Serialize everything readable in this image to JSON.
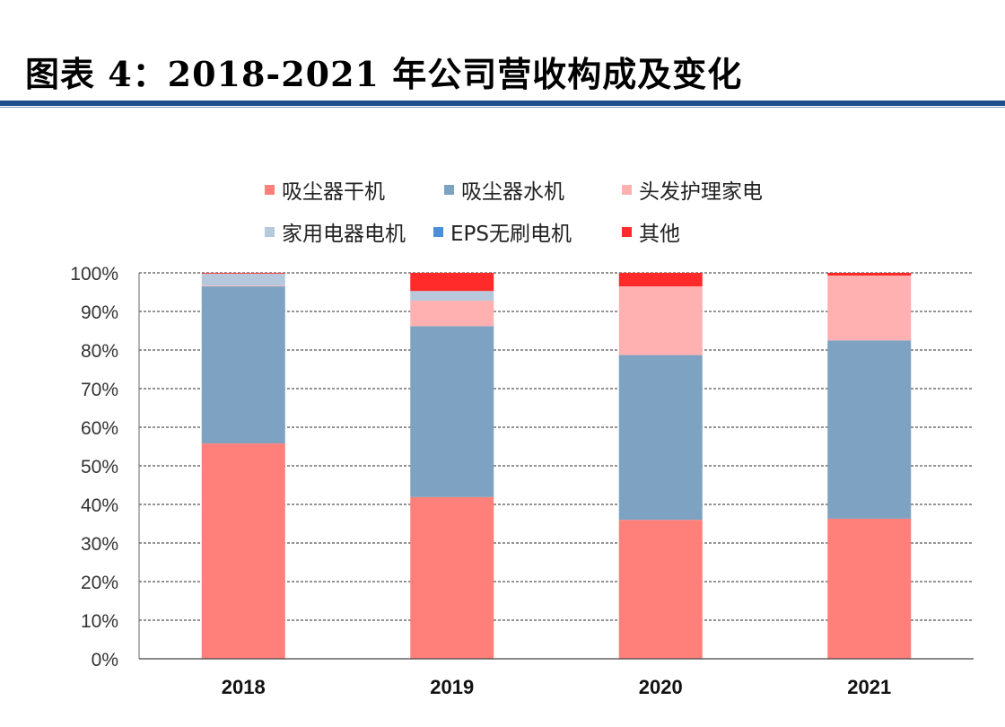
{
  "title": "图表 4：2018-2021 年公司营收构成及变化",
  "chart_data": {
    "type": "bar",
    "stacked": true,
    "categories": [
      "2018",
      "2019",
      "2020",
      "2021"
    ],
    "ylim": [
      0,
      100
    ],
    "yticks": [
      "0%",
      "10%",
      "20%",
      "30%",
      "40%",
      "50%",
      "60%",
      "70%",
      "80%",
      "90%",
      "100%"
    ],
    "grid": true,
    "legend_position": "top",
    "series": [
      {
        "name": "吸尘器干机",
        "color": "#ff7f7b",
        "values": [
          55.8,
          41.9,
          36.0,
          36.3
        ]
      },
      {
        "name": "吸尘器水机",
        "color": "#7ea3c2",
        "values": [
          40.7,
          44.3,
          42.7,
          46.2
        ]
      },
      {
        "name": "头发护理家电",
        "color": "#ffb0b0",
        "values": [
          0.2,
          6.6,
          17.8,
          16.8
        ]
      },
      {
        "name": "家用电器电机",
        "color": "#b6c8dc",
        "values": [
          3.1,
          2.5,
          0,
          0
        ]
      },
      {
        "name": "EPS无刷电机",
        "color": "#4a90d9",
        "values": [
          0,
          0,
          0,
          0
        ]
      },
      {
        "name": "其他",
        "color": "#ff2a2a",
        "values": [
          0.2,
          4.7,
          3.5,
          0.7
        ]
      }
    ]
  }
}
